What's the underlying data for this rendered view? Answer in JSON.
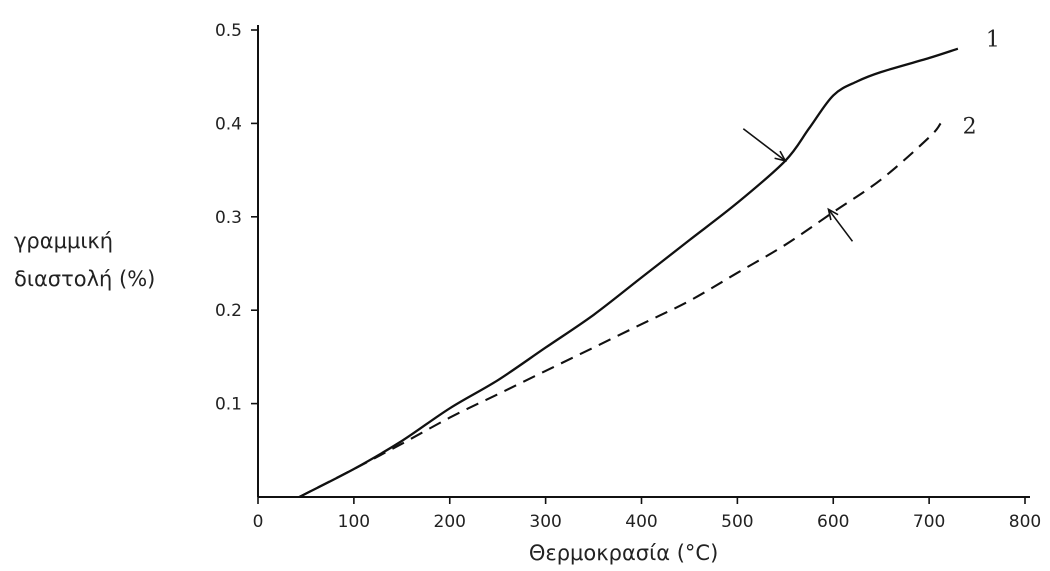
{
  "chart_data": {
    "type": "line",
    "xlabel": "Θερμοκρασία (°C)",
    "ylabel_lines": [
      "γραμμική",
      "διαστολή (%)"
    ],
    "xlim": [
      0,
      800
    ],
    "ylim": [
      0,
      0.5
    ],
    "x_ticks": [
      0,
      100,
      200,
      300,
      400,
      500,
      600,
      700,
      800
    ],
    "x_tick_labels": [
      "0",
      "100",
      "200",
      "300",
      "400",
      "500",
      "600",
      "700",
      "800"
    ],
    "y_ticks": [
      0.1,
      0.2,
      0.3,
      0.4,
      0.5
    ],
    "y_tick_labels": [
      "0.1",
      "0.2",
      "0.3",
      "0.4",
      "0.5"
    ],
    "grid": false,
    "series": [
      {
        "label": "1",
        "style": "solid",
        "x": [
          43,
          100,
          150,
          200,
          250,
          300,
          350,
          400,
          450,
          500,
          550,
          575,
          600,
          625,
          650,
          700,
          730
        ],
        "y": [
          0.0,
          0.03,
          0.06,
          0.095,
          0.125,
          0.16,
          0.195,
          0.235,
          0.275,
          0.315,
          0.36,
          0.395,
          0.43,
          0.445,
          0.455,
          0.47,
          0.48
        ]
      },
      {
        "label": "2",
        "style": "dashed",
        "x": [
          43,
          100,
          150,
          200,
          250,
          300,
          350,
          400,
          450,
          500,
          550,
          600,
          650,
          700,
          712
        ],
        "y": [
          0.0,
          0.03,
          0.057,
          0.085,
          0.11,
          0.135,
          0.16,
          0.185,
          0.21,
          0.24,
          0.27,
          0.305,
          0.34,
          0.385,
          0.4
        ]
      }
    ],
    "arrows": [
      {
        "points_to_series": "1",
        "x": 550,
        "y": 0.36
      },
      {
        "points_to_series": "2",
        "x": 595,
        "y": 0.308
      }
    ]
  }
}
